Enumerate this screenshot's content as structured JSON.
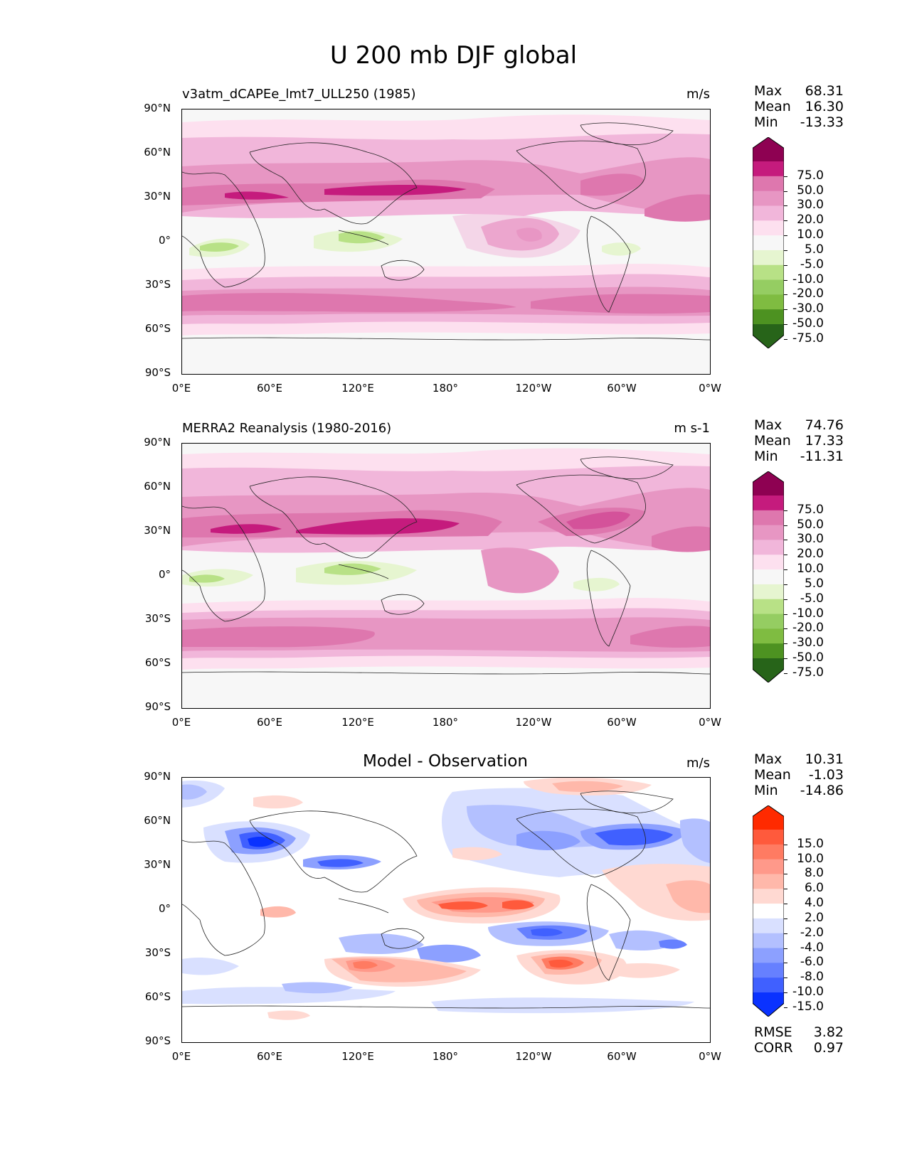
{
  "figure": {
    "title": "U 200 mb DJF global"
  },
  "axes": {
    "lat_labels": [
      "90°N",
      "60°N",
      "30°N",
      "0°",
      "30°S",
      "60°S",
      "90°S"
    ],
    "lon_labels": [
      "0°E",
      "60°E",
      "120°E",
      "180°",
      "120°W",
      "60°W",
      "0°W"
    ]
  },
  "panels": [
    {
      "title": "v3atm_dCAPEe_lmt7_ULL250 (1985)",
      "units": "m/s",
      "stats": [
        {
          "label": "Max",
          "value": "68.31"
        },
        {
          "label": "Mean",
          "value": "16.30"
        },
        {
          "label": "Min",
          "value": "-13.33"
        }
      ],
      "colorbar": {
        "labels": [
          "75.0",
          "50.0",
          "30.0",
          "20.0",
          "10.0",
          "5.0",
          "-5.0",
          "-10.0",
          "-20.0",
          "-30.0",
          "-50.0",
          "-75.0"
        ],
        "colors": [
          "#8e0152",
          "#c51b7d",
          "#de77ae",
          "#e796c3",
          "#f1b6da",
          "#fde0ef",
          "#f7f7f7",
          "#e6f5d0",
          "#b8e186",
          "#95cd62",
          "#7fbc41",
          "#4d9221",
          "#276419"
        ]
      }
    },
    {
      "title": "MERRA2 Reanalysis (1980-2016)",
      "units": "m s-1",
      "stats": [
        {
          "label": "Max",
          "value": "74.76"
        },
        {
          "label": "Mean",
          "value": "17.33"
        },
        {
          "label": "Min",
          "value": "-11.31"
        }
      ],
      "colorbar": {
        "labels": [
          "75.0",
          "50.0",
          "30.0",
          "20.0",
          "10.0",
          "5.0",
          "-5.0",
          "-10.0",
          "-20.0",
          "-30.0",
          "-50.0",
          "-75.0"
        ],
        "colors": [
          "#8e0152",
          "#c51b7d",
          "#de77ae",
          "#e796c3",
          "#f1b6da",
          "#fde0ef",
          "#f7f7f7",
          "#e6f5d0",
          "#b8e186",
          "#95cd62",
          "#7fbc41",
          "#4d9221",
          "#276419"
        ]
      }
    },
    {
      "title": "Model - Observation",
      "units": "m/s",
      "stats": [
        {
          "label": "Max",
          "value": "10.31"
        },
        {
          "label": "Mean",
          "value": "-1.03"
        },
        {
          "label": "Min",
          "value": "-14.86"
        }
      ],
      "metrics": [
        {
          "label": "RMSE",
          "value": "3.82"
        },
        {
          "label": "CORR",
          "value": "0.97"
        }
      ],
      "colorbar": {
        "labels": [
          "15.0",
          "10.0",
          "8.0",
          "6.0",
          "4.0",
          "2.0",
          "-2.0",
          "-4.0",
          "-6.0",
          "-8.0",
          "-10.0",
          "-15.0"
        ],
        "colors": [
          "#ff2a00",
          "#ff5a3c",
          "#ff7b62",
          "#ff998a",
          "#ffb8aa",
          "#ffd9d2",
          "#ffffff",
          "#d9e0ff",
          "#b3c0ff",
          "#8ca0ff",
          "#6680ff",
          "#4060ff",
          "#0a32ff"
        ]
      }
    }
  ]
}
